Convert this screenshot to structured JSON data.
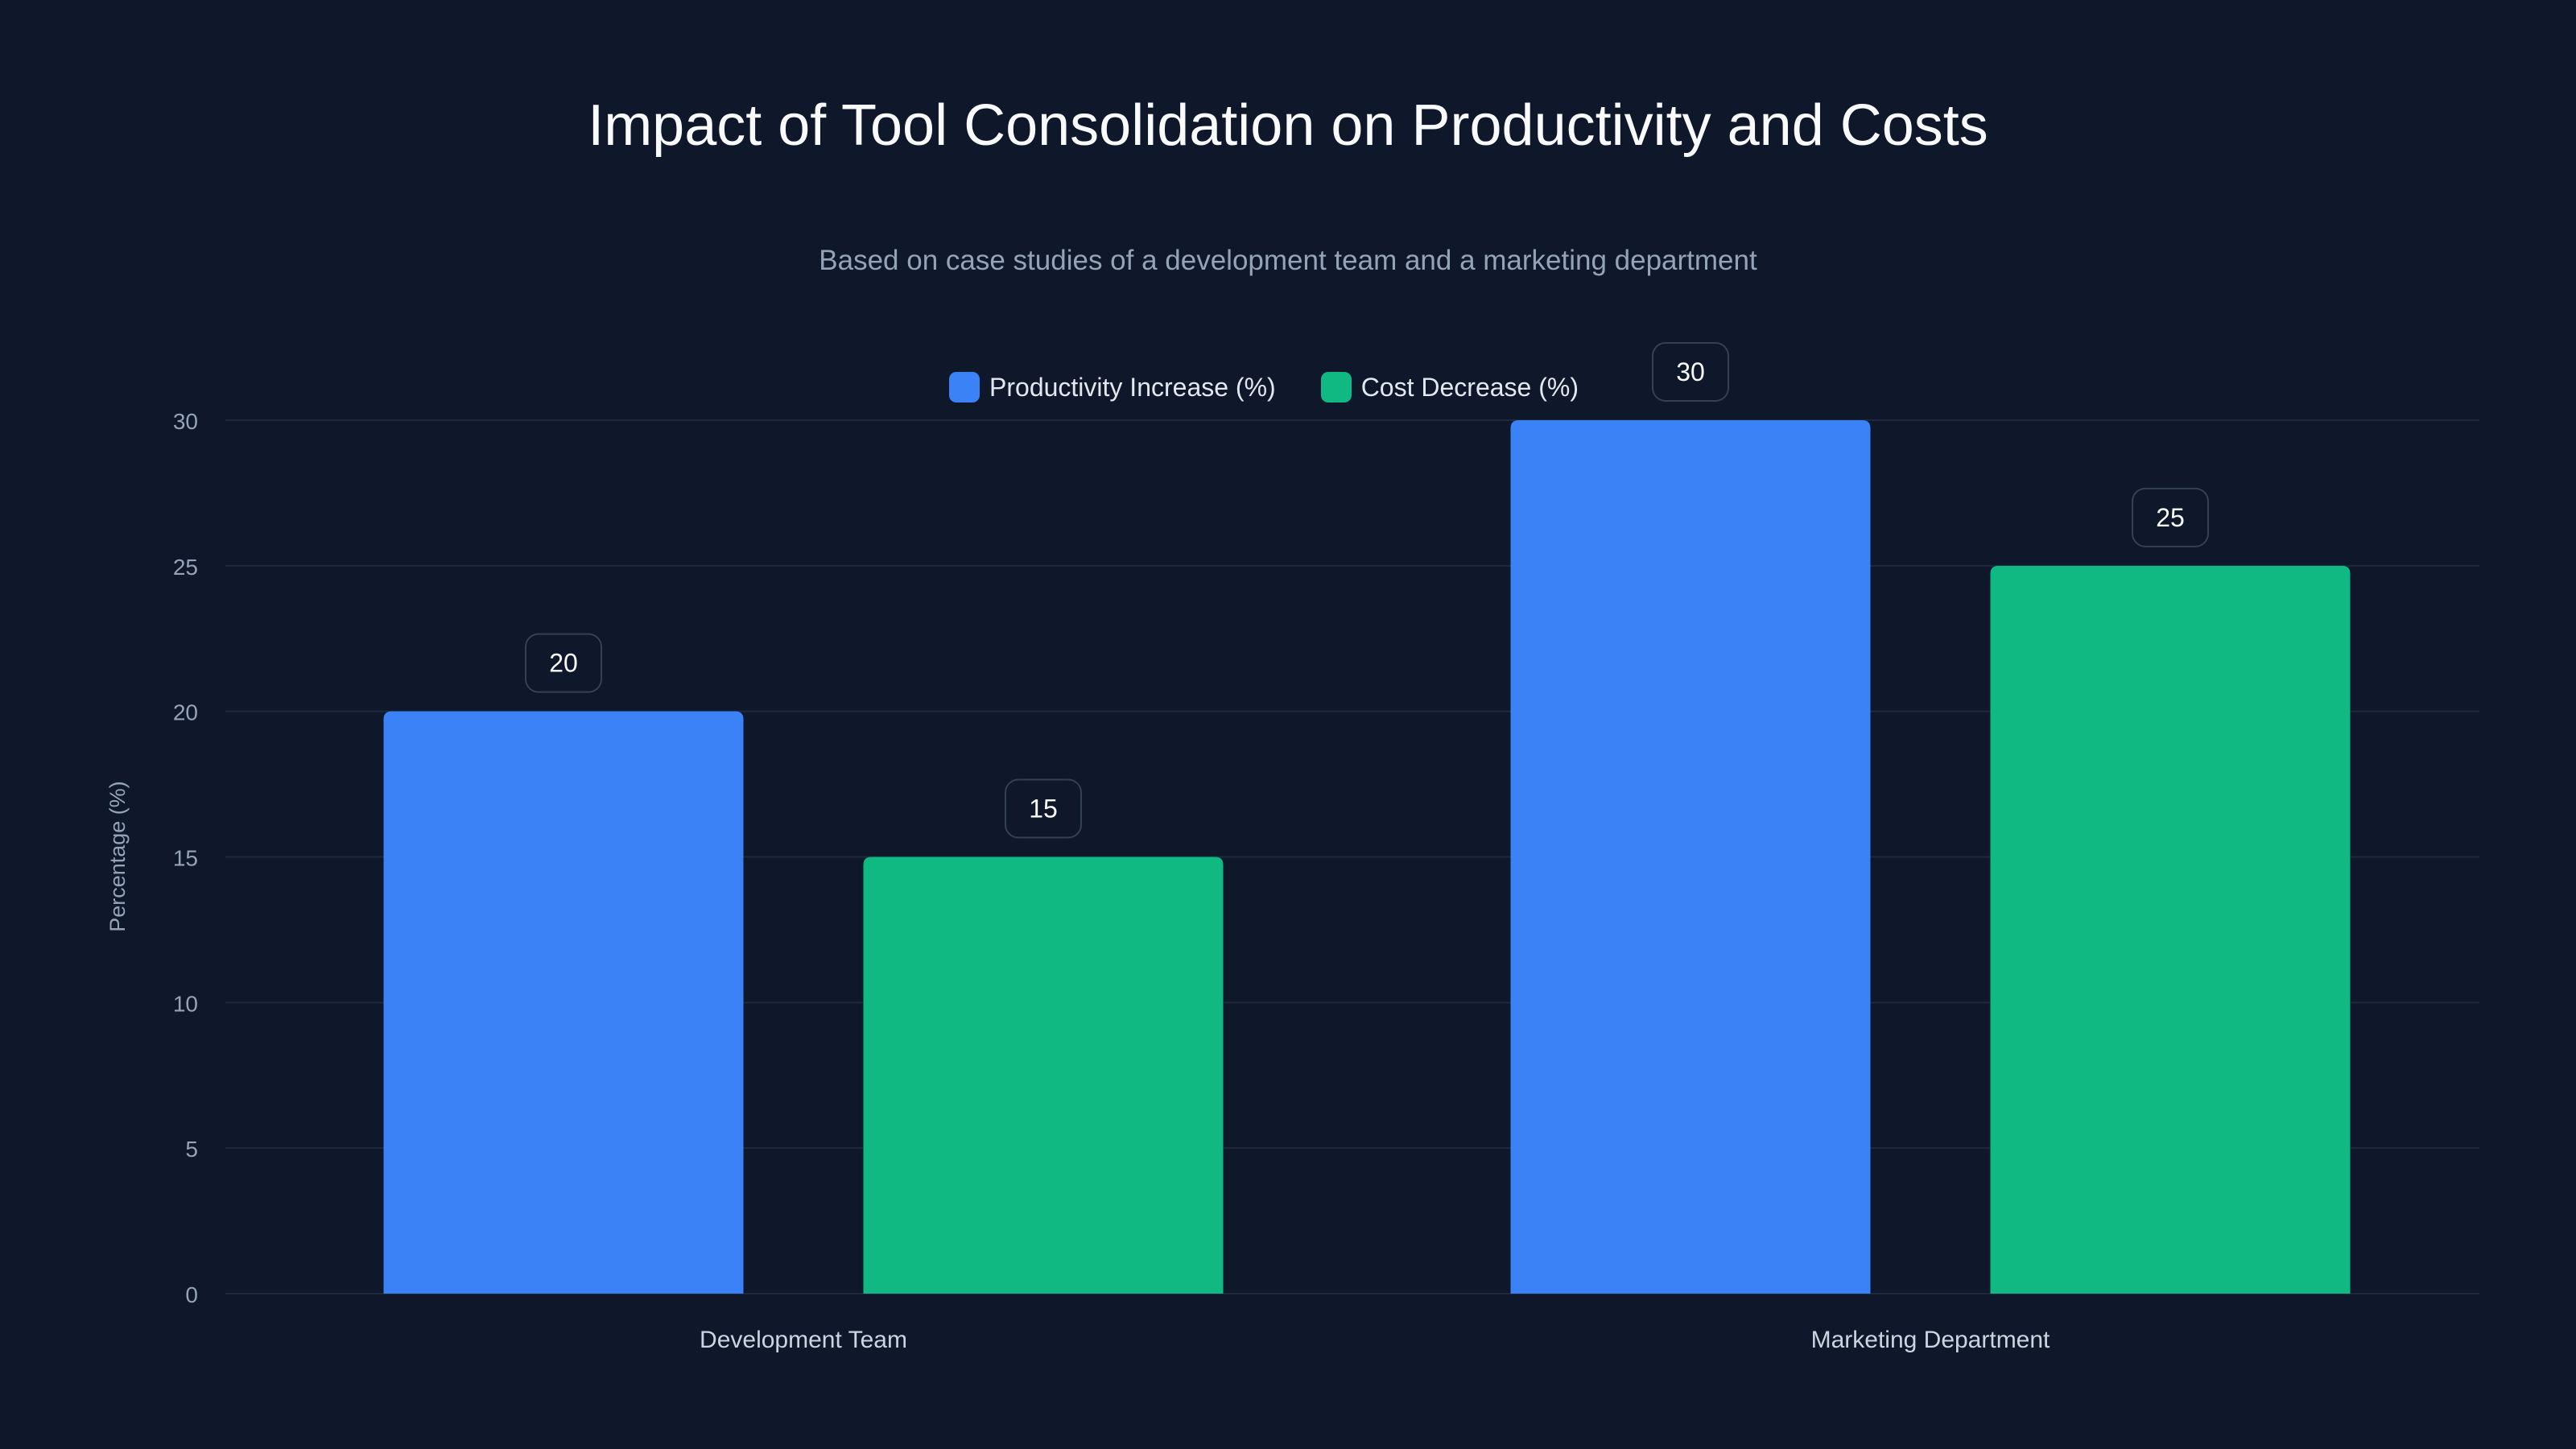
{
  "chart_data": {
    "type": "bar",
    "title": "Impact of Tool Consolidation on Productivity and Costs",
    "subtitle": "Based on case studies of a development team and a marketing department",
    "xlabel": "",
    "ylabel": "Percentage (%)",
    "categories": [
      "Development Team",
      "Marketing Department"
    ],
    "series": [
      {
        "name": "Productivity Increase (%)",
        "color": "#3b82f6",
        "values": [
          20,
          30
        ]
      },
      {
        "name": "Cost Decrease (%)",
        "color": "#10b981",
        "values": [
          15,
          25
        ]
      }
    ],
    "ylim": [
      0,
      30
    ],
    "yticks": [
      "0",
      "5",
      "10",
      "15",
      "20",
      "25",
      "30"
    ],
    "grid": true,
    "legend_position": "top-center",
    "data_labels": true
  }
}
